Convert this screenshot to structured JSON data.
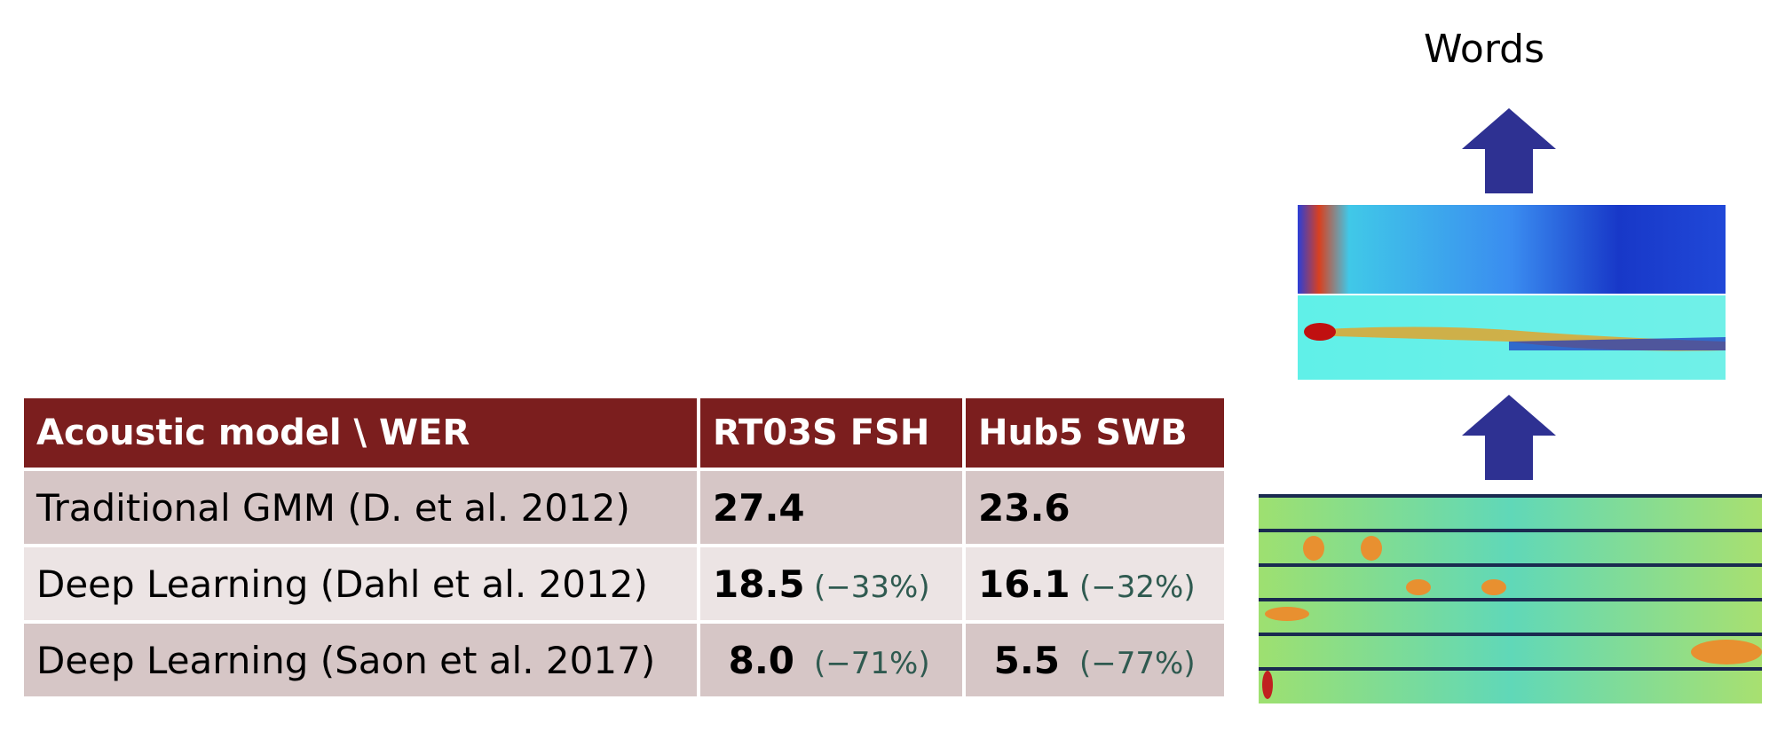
{
  "label": "Words",
  "table": {
    "header": [
      "Acoustic model \\ WER",
      "RT03S FSH",
      "Hub5 SWB"
    ],
    "rows": [
      {
        "model": "Traditional GMM (D. et al. 2012)",
        "cells": [
          {
            "value": "27.4"
          },
          {
            "value": "23.6"
          }
        ]
      },
      {
        "model": "Deep Learning (Dahl et al. 2012)",
        "cells": [
          {
            "value": "18.5",
            "change": "(−33%)"
          },
          {
            "value": "16.1",
            "change": "(−32%)"
          }
        ]
      },
      {
        "model": "Deep Learning (Saon et al. 2017)",
        "cells": [
          {
            "value": "8.0",
            "change": "(−71%)"
          },
          {
            "value": "5.5",
            "change": "(−77%)"
          }
        ]
      }
    ]
  }
}
